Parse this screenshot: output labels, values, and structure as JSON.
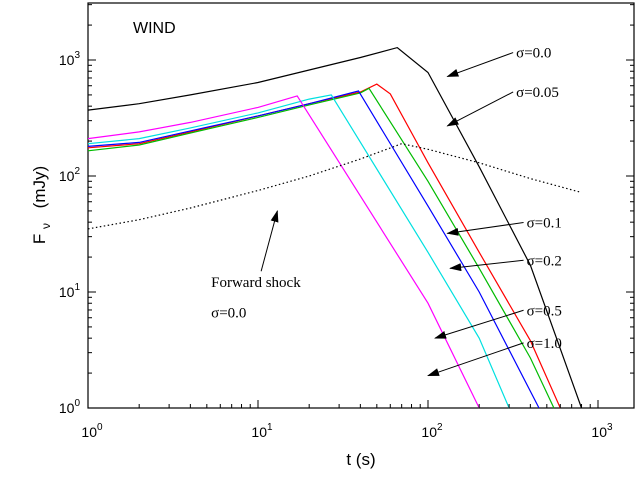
{
  "chart_data": {
    "type": "line",
    "title": "WIND",
    "xlabel": "t (s)",
    "ylabel": {
      "main": "F",
      "sub": "ν",
      "unit": "(mJy)"
    },
    "x_scale": "log",
    "y_scale": "log",
    "xlim": [
      1,
      1000
    ],
    "ylim": [
      1,
      2000
    ],
    "x_ticks": [
      {
        "base": "10",
        "exp": "0",
        "value": 1
      },
      {
        "base": "10",
        "exp": "1",
        "value": 10
      },
      {
        "base": "10",
        "exp": "2",
        "value": 100
      },
      {
        "base": "10",
        "exp": "3",
        "value": 1000
      }
    ],
    "y_ticks": [
      {
        "base": "10",
        "exp": "0",
        "value": 1
      },
      {
        "base": "10",
        "exp": "1",
        "value": 10
      },
      {
        "base": "10",
        "exp": "2",
        "value": 100
      },
      {
        "base": "10",
        "exp": "3",
        "value": 1000
      }
    ],
    "grid": false,
    "series": [
      {
        "color": "#000000",
        "dash": false,
        "x": [
          1,
          2,
          4,
          10,
          20,
          40,
          66,
          100,
          200,
          400,
          800
        ],
        "y": [
          370,
          420,
          500,
          640,
          820,
          1050,
          1280,
          780,
          120,
          17,
          1
        ]
      },
      {
        "color": "#ff0000",
        "dash": false,
        "x": [
          1,
          2,
          4,
          10,
          20,
          40,
          50,
          60,
          100,
          200,
          400,
          600
        ],
        "y": [
          175,
          190,
          240,
          330,
          420,
          530,
          620,
          510,
          130,
          22,
          3.8,
          1
        ]
      },
      {
        "color": "#00bb00",
        "dash": false,
        "x": [
          1,
          2,
          4,
          10,
          20,
          40,
          45,
          100,
          200,
          400,
          550
        ],
        "y": [
          165,
          185,
          235,
          320,
          410,
          520,
          570,
          90,
          16,
          2.7,
          1
        ]
      },
      {
        "color": "#0000ff",
        "dash": false,
        "x": [
          1,
          2,
          4,
          10,
          20,
          39,
          100,
          200,
          450
        ],
        "y": [
          180,
          195,
          245,
          330,
          420,
          540,
          55,
          10,
          1
        ]
      },
      {
        "color": "#00e0e0",
        "dash": false,
        "x": [
          1,
          2,
          4,
          10,
          20,
          27,
          100,
          200,
          300
        ],
        "y": [
          190,
          210,
          260,
          350,
          460,
          500,
          22,
          4,
          1
        ]
      },
      {
        "color": "#ff00ff",
        "dash": false,
        "x": [
          1,
          2,
          4,
          10,
          17,
          100,
          200
        ],
        "y": [
          210,
          240,
          290,
          390,
          490,
          8,
          1
        ]
      },
      {
        "color": "#000000",
        "dash": true,
        "x": [
          1,
          2,
          4,
          10,
          20,
          40,
          70,
          100,
          200,
          400,
          800
        ],
        "y": [
          35,
          42,
          53,
          75,
          100,
          140,
          190,
          170,
          130,
          95,
          72
        ]
      }
    ],
    "annotations": [
      {
        "text": "σ=0.0",
        "x": 330,
        "y": 1050,
        "arrow_to": [
          130,
          720
        ]
      },
      {
        "text": "σ=0.05",
        "x": 330,
        "y": 480,
        "arrow_to": [
          130,
          270
        ]
      },
      {
        "text": "σ=0.1",
        "x": 380,
        "y": 36,
        "arrow_to": [
          130,
          32
        ]
      },
      {
        "text": "σ=0.2",
        "x": 380,
        "y": 17,
        "arrow_to": [
          135,
          16
        ]
      },
      {
        "text": "σ=0.5",
        "x": 380,
        "y": 6.3,
        "arrow_to": [
          110,
          4
        ]
      },
      {
        "text": "σ=1.0",
        "x": 380,
        "y": 3.3,
        "arrow_to": [
          100,
          1.9
        ]
      },
      {
        "text": "Forward shock",
        "x": 5.3,
        "y": 11,
        "arrow_to": [
          13,
          50
        ]
      },
      {
        "text": "σ=0.0",
        "x": 5.3,
        "y": 6,
        "arrow_to": null
      }
    ]
  }
}
